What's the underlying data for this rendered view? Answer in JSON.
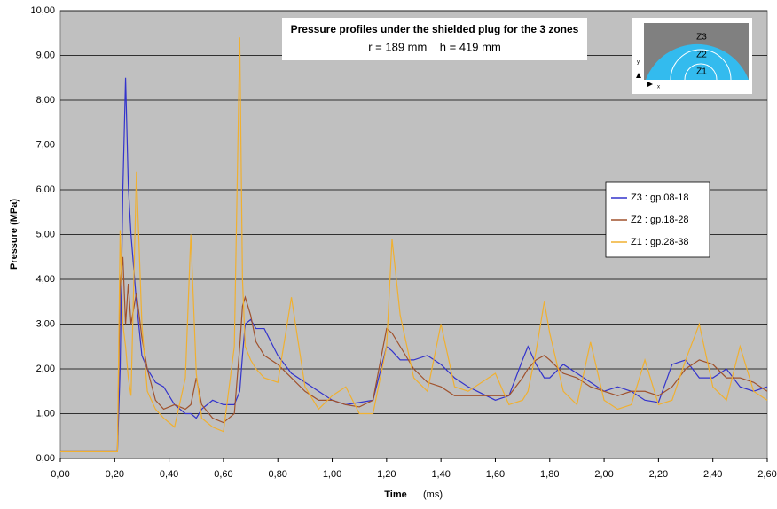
{
  "chart_data": {
    "type": "line",
    "title": "Pressure profiles under the shielded plug for the 3 zones",
    "subtitle": "r = 189 mm    h = 419 mm",
    "x_label": "Time",
    "x_unit": "(ms)",
    "y_label": "Pressure (MPa)",
    "inset": {
      "labels": [
        "Z3",
        "Z2",
        "Z1"
      ],
      "axis_labels": [
        "y",
        "x"
      ]
    },
    "legend_position": "right",
    "grid": true,
    "background": "#c0c0c0",
    "xlim": [
      0,
      2.6
    ],
    "ylim": [
      0,
      10
    ],
    "xticks": [
      {
        "value": 0,
        "label": "0,00"
      },
      {
        "value": 0.2,
        "label": "0,20"
      },
      {
        "value": 0.4,
        "label": "0,40"
      },
      {
        "value": 0.6,
        "label": "0,60"
      },
      {
        "value": 0.8,
        "label": "0,80"
      },
      {
        "value": 1.0,
        "label": "1,00"
      },
      {
        "value": 1.2,
        "label": "1,20"
      },
      {
        "value": 1.4,
        "label": "1,40"
      },
      {
        "value": 1.6,
        "label": "1,60"
      },
      {
        "value": 1.8,
        "label": "1,80"
      },
      {
        "value": 2.0,
        "label": "2,00"
      },
      {
        "value": 2.2,
        "label": "2,20"
      },
      {
        "value": 2.4,
        "label": "2,40"
      },
      {
        "value": 2.6,
        "label": "2,60"
      }
    ],
    "yticks": [
      {
        "value": 0,
        "label": "0,00"
      },
      {
        "value": 1,
        "label": "1,00"
      },
      {
        "value": 2,
        "label": "2,00"
      },
      {
        "value": 3,
        "label": "3,00"
      },
      {
        "value": 4,
        "label": "4,00"
      },
      {
        "value": 5,
        "label": "5,00"
      },
      {
        "value": 6,
        "label": "6,00"
      },
      {
        "value": 7,
        "label": "7,00"
      },
      {
        "value": 8,
        "label": "8,00"
      },
      {
        "value": 9,
        "label": "9,00"
      },
      {
        "value": 10,
        "label": "10,00"
      }
    ],
    "x": [
      0,
      0.1,
      0.2,
      0.21,
      0.22,
      0.23,
      0.24,
      0.25,
      0.26,
      0.28,
      0.3,
      0.32,
      0.35,
      0.38,
      0.42,
      0.46,
      0.48,
      0.5,
      0.52,
      0.56,
      0.6,
      0.64,
      0.66,
      0.67,
      0.68,
      0.7,
      0.72,
      0.75,
      0.8,
      0.85,
      0.9,
      0.95,
      1.0,
      1.05,
      1.1,
      1.15,
      1.2,
      1.22,
      1.25,
      1.3,
      1.35,
      1.4,
      1.45,
      1.5,
      1.6,
      1.65,
      1.7,
      1.72,
      1.75,
      1.78,
      1.8,
      1.85,
      1.9,
      1.95,
      2.0,
      2.05,
      2.1,
      2.15,
      2.2,
      2.25,
      2.3,
      2.35,
      2.4,
      2.45,
      2.5,
      2.55,
      2.6
    ],
    "series": [
      {
        "name": "Z3 : gp.08-18",
        "color": "#3333cc",
        "values": [
          0.15,
          0.15,
          0.15,
          0.15,
          2.0,
          6.0,
          8.5,
          6.1,
          5.0,
          3.5,
          2.3,
          2.0,
          1.7,
          1.6,
          1.2,
          1.0,
          1.0,
          0.9,
          1.1,
          1.3,
          1.2,
          1.2,
          1.5,
          2.3,
          3.0,
          3.1,
          2.9,
          2.9,
          2.3,
          1.9,
          1.7,
          1.5,
          1.3,
          1.2,
          1.25,
          1.3,
          2.5,
          2.4,
          2.2,
          2.2,
          2.3,
          2.1,
          1.8,
          1.6,
          1.3,
          1.4,
          2.2,
          2.5,
          2.1,
          1.8,
          1.8,
          2.1,
          1.9,
          1.7,
          1.5,
          1.6,
          1.5,
          1.3,
          1.25,
          2.1,
          2.2,
          1.8,
          1.8,
          2.0,
          1.6,
          1.5,
          1.6
        ]
      },
      {
        "name": "Z2 : gp.18-28",
        "color": "#a0522d",
        "values": [
          0.15,
          0.15,
          0.15,
          0.15,
          3.9,
          4.5,
          3.0,
          3.9,
          3.0,
          3.7,
          2.7,
          2.0,
          1.3,
          1.1,
          1.2,
          1.1,
          1.2,
          1.8,
          1.2,
          0.9,
          0.8,
          1.0,
          2.5,
          3.4,
          3.6,
          3.2,
          2.6,
          2.3,
          2.1,
          1.8,
          1.5,
          1.3,
          1.3,
          1.2,
          1.15,
          1.3,
          2.9,
          2.8,
          2.5,
          2.0,
          1.7,
          1.6,
          1.4,
          1.4,
          1.4,
          1.4,
          1.8,
          2.0,
          2.2,
          2.3,
          2.2,
          1.9,
          1.8,
          1.6,
          1.5,
          1.4,
          1.5,
          1.5,
          1.4,
          1.6,
          2.0,
          2.2,
          2.1,
          1.8,
          1.8,
          1.7,
          1.5
        ]
      },
      {
        "name": "Z1 : gp.28-38",
        "color": "#f0b030",
        "values": [
          0.15,
          0.15,
          0.15,
          0.15,
          5.1,
          3.0,
          2.5,
          1.8,
          1.4,
          6.4,
          3.0,
          1.5,
          1.1,
          0.9,
          0.7,
          1.8,
          5.0,
          1.9,
          0.9,
          0.7,
          0.6,
          2.5,
          9.4,
          4.0,
          2.5,
          2.2,
          2.0,
          1.8,
          1.7,
          3.6,
          1.6,
          1.1,
          1.4,
          1.6,
          1.0,
          1.0,
          2.5,
          4.9,
          3.2,
          1.8,
          1.5,
          3.0,
          1.6,
          1.5,
          1.9,
          1.2,
          1.3,
          1.5,
          2.4,
          3.5,
          2.8,
          1.5,
          1.2,
          2.6,
          1.3,
          1.1,
          1.2,
          2.2,
          1.2,
          1.3,
          2.2,
          3.0,
          1.6,
          1.3,
          2.5,
          1.5,
          1.3
        ]
      }
    ]
  }
}
